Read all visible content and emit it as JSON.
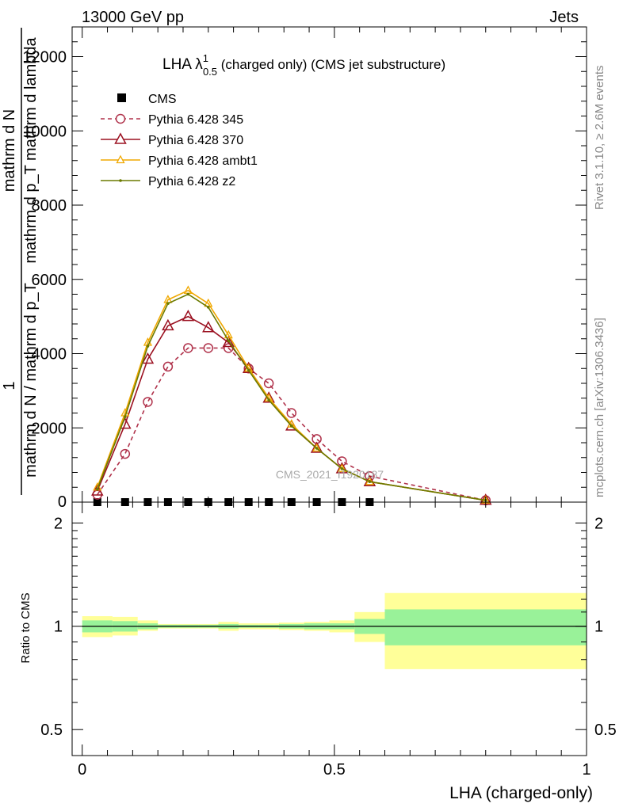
{
  "header": {
    "left": "13000 GeV pp",
    "right": "Jets"
  },
  "side_text": {
    "top": "Rivet 3.1.10, ≥ 2.6M events",
    "bottom": "mcplots.cern.ch [arXiv:1306.3436]"
  },
  "watermark": "CMS_2021_I1920187",
  "chart_data": [
    {
      "type": "line",
      "title": {
        "prefix": "LHA λ",
        "sup": "1",
        "sub": "0.5",
        "suffix": " (charged only) (CMS jet substructure)"
      },
      "ylabel": {
        "num": "mathrm d N",
        "den": "mathrm d p_T mathrm d lambda",
        "lead_num": "1",
        "lead_den": "mathrm d N / mathrm d p_T"
      },
      "ylabel_lines": [
        "mathrm d N / mathrm d p_T",
        "mathrm d p_T mathrm d lambda"
      ],
      "ylim": [
        0,
        12800
      ],
      "xlim": [
        -0.02,
        1.0
      ],
      "yticks": [
        2000,
        4000,
        6000,
        8000,
        10000,
        12000
      ],
      "ytick_labels": [
        "2000",
        "4000",
        "6000",
        "8000",
        "10000",
        "12000"
      ],
      "y_zero_label": "0",
      "grid": false,
      "legend_position": "top-left",
      "series": [
        {
          "name": "CMS",
          "color": "#000000",
          "marker": "square",
          "x": [
            0.03,
            0.085,
            0.13,
            0.17,
            0.21,
            0.25,
            0.29,
            0.33,
            0.37,
            0.415,
            0.465,
            0.515,
            0.57
          ],
          "y": [
            0,
            0,
            0,
            0,
            0,
            0,
            0,
            0,
            0,
            0,
            0,
            0,
            0
          ]
        },
        {
          "name": "Pythia 6.428 345",
          "color": "#b0324b",
          "marker": "open-circle",
          "dash": true,
          "x": [
            0.03,
            0.085,
            0.13,
            0.17,
            0.21,
            0.25,
            0.29,
            0.33,
            0.37,
            0.415,
            0.465,
            0.515,
            0.57,
            0.8
          ],
          "y": [
            200,
            1300,
            2700,
            3650,
            4150,
            4150,
            4150,
            3600,
            3200,
            2400,
            1700,
            1100,
            700,
            50
          ]
        },
        {
          "name": "Pythia 6.428 370",
          "color": "#9b1020",
          "marker": "open-triangle",
          "x": [
            0.03,
            0.085,
            0.13,
            0.17,
            0.21,
            0.25,
            0.29,
            0.33,
            0.37,
            0.415,
            0.465,
            0.515,
            0.57,
            0.8
          ],
          "y": [
            300,
            2100,
            3850,
            4750,
            5000,
            4700,
            4300,
            3600,
            2800,
            2050,
            1450,
            900,
            550,
            50
          ]
        },
        {
          "name": "Pythia 6.428 ambt1",
          "color": "#f0a800",
          "marker": "open-triangle-small",
          "x": [
            0.03,
            0.085,
            0.13,
            0.17,
            0.21,
            0.25,
            0.29,
            0.33,
            0.37,
            0.415,
            0.465,
            0.515,
            0.57,
            0.8
          ],
          "y": [
            400,
            2400,
            4300,
            5450,
            5700,
            5350,
            4500,
            3600,
            2800,
            2100,
            1450,
            900,
            550,
            50
          ]
        },
        {
          "name": "Pythia 6.428 z2",
          "color": "#6b7a00",
          "marker": "dot",
          "x": [
            0.03,
            0.085,
            0.13,
            0.17,
            0.21,
            0.25,
            0.29,
            0.33,
            0.37,
            0.415,
            0.465,
            0.515,
            0.57,
            0.8
          ],
          "y": [
            350,
            2300,
            4200,
            5350,
            5600,
            5250,
            4350,
            3550,
            2750,
            2050,
            1450,
            900,
            550,
            50
          ]
        }
      ]
    },
    {
      "type": "area",
      "ylabel": "Ratio to CMS",
      "xlabel": "LHA (charged-only)",
      "xlim": [
        -0.02,
        1.0
      ],
      "ylim": [
        0.42,
        2.3
      ],
      "log_y": true,
      "xticks": [
        0,
        0.5,
        1
      ],
      "xtick_labels": [
        "0",
        "0.5",
        "1"
      ],
      "yticks": [
        0.5,
        1,
        2
      ],
      "ytick_labels": [
        "0.5",
        "1",
        "2"
      ],
      "grid": false,
      "band_colors": {
        "inner": "#99f299",
        "outer": "#ffff99"
      },
      "bins": [
        {
          "x0": 0.0,
          "x1": 0.06,
          "inner": [
            0.96,
            1.04
          ],
          "outer": [
            0.93,
            1.07
          ]
        },
        {
          "x0": 0.06,
          "x1": 0.11,
          "inner": [
            0.965,
            1.035
          ],
          "outer": [
            0.94,
            1.065
          ]
        },
        {
          "x0": 0.11,
          "x1": 0.15,
          "inner": [
            0.98,
            1.02
          ],
          "outer": [
            0.97,
            1.04
          ]
        },
        {
          "x0": 0.15,
          "x1": 0.19,
          "inner": [
            0.99,
            1.01
          ],
          "outer": [
            0.985,
            1.015
          ]
        },
        {
          "x0": 0.19,
          "x1": 0.23,
          "inner": [
            0.99,
            1.01
          ],
          "outer": [
            0.985,
            1.015
          ]
        },
        {
          "x0": 0.23,
          "x1": 0.27,
          "inner": [
            0.99,
            1.01
          ],
          "outer": [
            0.985,
            1.015
          ]
        },
        {
          "x0": 0.27,
          "x1": 0.31,
          "inner": [
            0.985,
            1.015
          ],
          "outer": [
            0.97,
            1.03
          ]
        },
        {
          "x0": 0.31,
          "x1": 0.35,
          "inner": [
            0.99,
            1.01
          ],
          "outer": [
            0.98,
            1.02
          ]
        },
        {
          "x0": 0.35,
          "x1": 0.39,
          "inner": [
            0.99,
            1.01
          ],
          "outer": [
            0.98,
            1.02
          ]
        },
        {
          "x0": 0.39,
          "x1": 0.44,
          "inner": [
            0.985,
            1.015
          ],
          "outer": [
            0.975,
            1.025
          ]
        },
        {
          "x0": 0.44,
          "x1": 0.49,
          "inner": [
            0.98,
            1.02
          ],
          "outer": [
            0.97,
            1.03
          ]
        },
        {
          "x0": 0.49,
          "x1": 0.54,
          "inner": [
            0.98,
            1.02
          ],
          "outer": [
            0.96,
            1.04
          ]
        },
        {
          "x0": 0.54,
          "x1": 0.6,
          "inner": [
            0.95,
            1.05
          ],
          "outer": [
            0.9,
            1.1
          ]
        },
        {
          "x0": 0.6,
          "x1": 1.0,
          "inner": [
            0.88,
            1.12
          ],
          "outer": [
            0.75,
            1.25
          ]
        }
      ],
      "reference_line": 1
    }
  ]
}
